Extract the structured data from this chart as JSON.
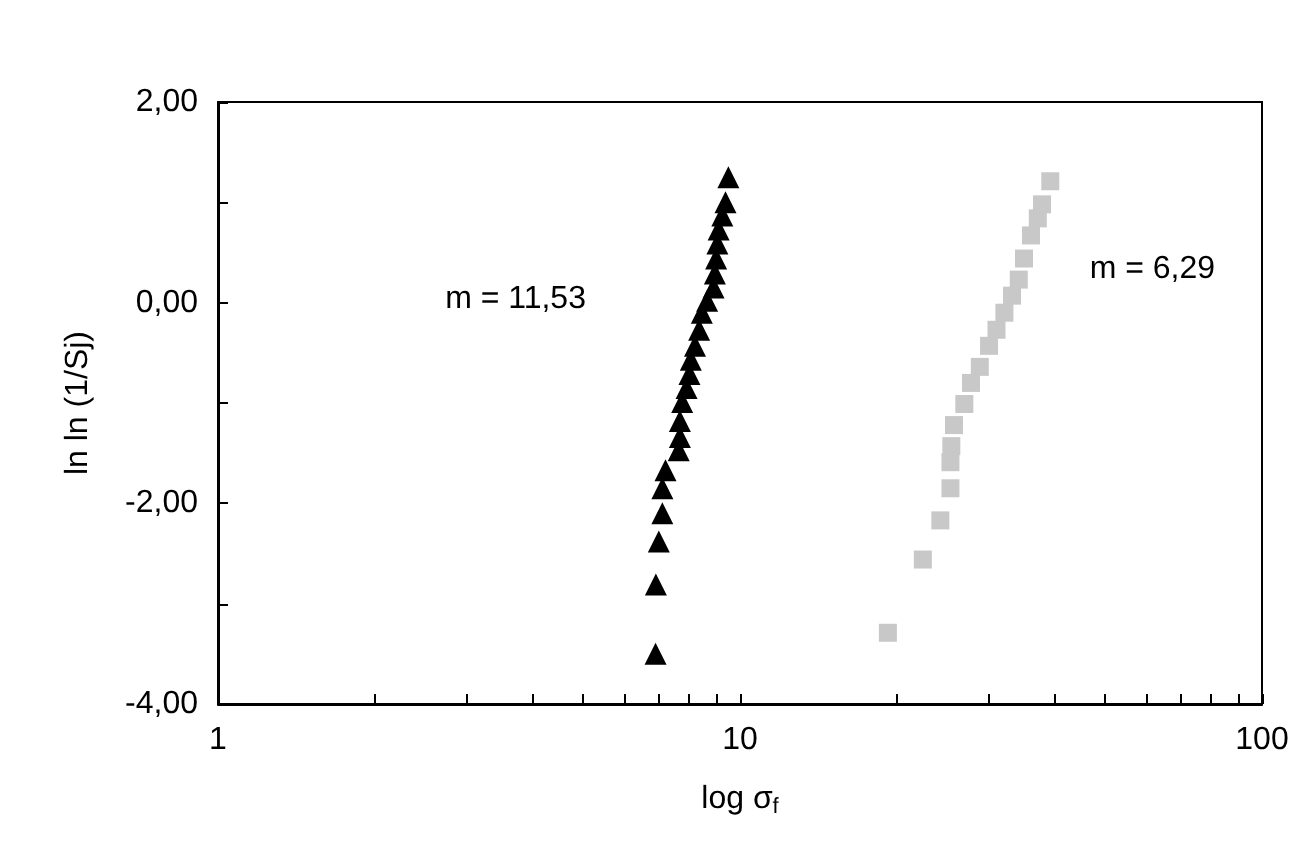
{
  "chart_data": {
    "type": "scatter",
    "xlabel": "log σ$_{f}$",
    "ylabel": "ln ln (1/Sj)",
    "log": "x",
    "grid": false,
    "xlim": [
      1,
      100
    ],
    "xticks": [
      1,
      {
        "value": 2,
        "label": null
      },
      {
        "value": 3,
        "label": null
      },
      {
        "value": 4,
        "label": null
      },
      {
        "value": 5,
        "label": null
      },
      {
        "value": 6,
        "label": null
      },
      {
        "value": 7,
        "label": null
      },
      {
        "value": 8,
        "label": null
      },
      {
        "value": 9,
        "label": null
      },
      10,
      {
        "value": 20,
        "label": null
      },
      {
        "value": 30,
        "label": null
      },
      {
        "value": 40,
        "label": null
      },
      {
        "value": 50,
        "label": null
      },
      {
        "value": 60,
        "label": null
      },
      {
        "value": 70,
        "label": null
      },
      {
        "value": 80,
        "label": null
      },
      {
        "value": 90,
        "label": null
      },
      100
    ],
    "ylim": [
      -4,
      2
    ],
    "yticks": [
      {
        "value": -4,
        "label": "-4,00"
      },
      {
        "value": -3,
        "label": null
      },
      {
        "value": -2,
        "label": "-2,00"
      },
      {
        "value": -1,
        "label": null
      },
      {
        "value": 0,
        "label": "0,00"
      },
      {
        "value": 1,
        "label": null
      },
      {
        "value": 2,
        "label": "2,00"
      }
    ],
    "series": [
      {
        "color": "#c8c8c8",
        "marker": "square",
        "x": [
          19.2,
          22.4,
          24.2,
          25.3,
          25.3,
          25.4,
          25.7,
          26.9,
          27.7,
          28.8,
          30.0,
          31.0,
          32.1,
          33.2,
          34.2,
          35.0,
          36.1,
          37.2,
          37.9,
          39.3
        ],
        "values": [
          -3.29,
          -2.56,
          -2.17,
          -1.85,
          -1.59,
          -1.43,
          -1.22,
          -1.01,
          -0.8,
          -0.64,
          -0.43,
          -0.27,
          -0.1,
          0.07,
          0.23,
          0.44,
          0.67,
          0.84,
          0.98,
          1.21
        ]
      },
      {
        "color": "#000000",
        "marker": "triangle",
        "x": [
          6.89,
          6.9,
          6.99,
          7.1,
          7.1,
          7.2,
          7.63,
          7.67,
          7.67,
          7.75,
          7.9,
          8.0,
          8.05,
          8.2,
          8.35,
          8.45,
          8.65,
          8.9,
          8.95,
          9.0,
          9.05,
          9.1,
          9.25,
          9.38,
          9.5
        ],
        "values": [
          -3.5,
          -2.81,
          -2.38,
          -2.1,
          -1.85,
          -1.67,
          -1.47,
          -1.34,
          -1.18,
          -0.99,
          -0.85,
          -0.71,
          -0.57,
          -0.43,
          -0.27,
          -0.1,
          0.02,
          0.15,
          0.29,
          0.44,
          0.59,
          0.73,
          0.87,
          1.0,
          1.25
        ]
      }
    ],
    "annotations": [
      "m = 11,53",
      "m = 6,29"
    ]
  }
}
